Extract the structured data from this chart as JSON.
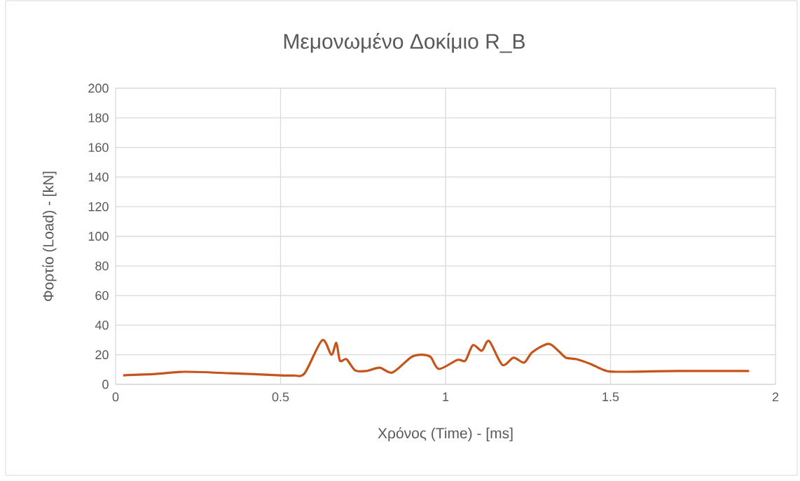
{
  "chart_data": {
    "type": "line",
    "title": "Μεμονωμένο Δοκίμιο R_B",
    "xlabel": "Χρόνος (Time) - [ms]",
    "ylabel": "Φορτίο (Load) - [kN]",
    "x": [
      0.023,
      0.12,
      0.21,
      0.35,
      0.5,
      0.54,
      0.573,
      0.626,
      0.654,
      0.669,
      0.68,
      0.7,
      0.726,
      0.76,
      0.8,
      0.839,
      0.896,
      0.928,
      0.955,
      0.98,
      1.036,
      1.06,
      1.083,
      1.11,
      1.132,
      1.172,
      1.206,
      1.238,
      1.263,
      1.312,
      1.344,
      1.365,
      1.397,
      1.44,
      1.482,
      1.518,
      1.7,
      1.92
    ],
    "series": [
      {
        "color": "#c5531a",
        "values": [
          6.1,
          7,
          8.5,
          7.5,
          6.1,
          6,
          7.5,
          29.8,
          20,
          28,
          16,
          17,
          9.5,
          9,
          11.3,
          8,
          18.4,
          20,
          18.4,
          10.4,
          16.5,
          16,
          26.5,
          22.7,
          29.3,
          13.2,
          18,
          14.7,
          21.7,
          27.4,
          22.2,
          18,
          17,
          13.7,
          9.5,
          8.5,
          9,
          9
        ]
      }
    ],
    "xlim": [
      0,
      2
    ],
    "ylim": [
      0,
      200
    ],
    "xticks": [
      0,
      0.5,
      1,
      1.5,
      2
    ],
    "yticks": [
      0,
      20,
      40,
      60,
      80,
      100,
      120,
      140,
      160,
      180,
      200
    ],
    "grid": true,
    "marker": "none",
    "line_style": "solid"
  }
}
